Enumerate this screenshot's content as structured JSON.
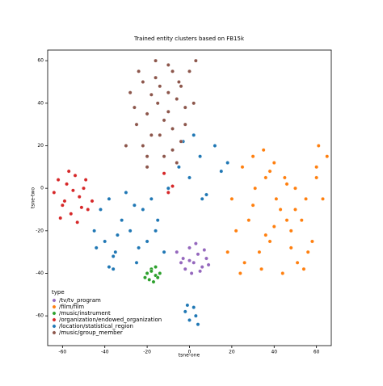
{
  "chart_data": {
    "type": "scatter",
    "title": "Trained entity clusters based on FB15k",
    "x_label": "tsne-one",
    "y_label": "tsne-two",
    "xlim": [
      -67,
      67
    ],
    "ylim": [
      -74,
      65
    ],
    "xticks": [
      -60,
      -40,
      -20,
      0,
      20,
      40,
      60
    ],
    "yticks": [
      -60,
      -40,
      -20,
      0,
      20,
      40,
      60
    ],
    "legend_title": "type",
    "legend_position": "lower left",
    "series": [
      {
        "name": "/tv/tv_program",
        "color": "#9467bd",
        "x": [
          -6,
          -3,
          0,
          2,
          4,
          6,
          8,
          -2,
          1,
          3,
          5,
          -4,
          7,
          9,
          0
        ],
        "y": [
          -30,
          -33,
          -28,
          -35,
          -31,
          -37,
          -33,
          -38,
          -40,
          -26,
          -39,
          -35,
          -29,
          -36,
          -34
        ]
      },
      {
        "name": "/film/film",
        "color": "#ff7f0e",
        "x": [
          20,
          25,
          30,
          35,
          40,
          45,
          50,
          55,
          60,
          65,
          22,
          28,
          33,
          38,
          43,
          48,
          53,
          58,
          63,
          18,
          26,
          31,
          36,
          41,
          46,
          51,
          56,
          61,
          24,
          34,
          44,
          54,
          30,
          40,
          50,
          60,
          38,
          48,
          36,
          46
        ],
        "y": [
          -5,
          10,
          15,
          18,
          12,
          5,
          0,
          -5,
          10,
          15,
          -20,
          -15,
          -30,
          -25,
          -10,
          -20,
          -15,
          -25,
          -5,
          -30,
          -35,
          0,
          5,
          -5,
          -15,
          -35,
          -30,
          20,
          -40,
          -38,
          -40,
          -38,
          -8,
          -18,
          -10,
          5,
          8,
          -28,
          -22,
          2
        ]
      },
      {
        "name": "/music/instrument",
        "color": "#2ca02c",
        "x": [
          -20,
          -18,
          -16,
          -14,
          -19,
          -17,
          -15,
          -18,
          -16,
          -21
        ],
        "y": [
          -40,
          -38,
          -41,
          -40,
          -43,
          -44,
          -42,
          -39,
          -37,
          -42
        ]
      },
      {
        "name": "/organization/endowed_organization",
        "color": "#d62728",
        "x": [
          -64,
          -62,
          -60,
          -58,
          -56,
          -54,
          -52,
          -50,
          -48,
          -46,
          -61,
          -57,
          -53,
          -49,
          -59,
          -55,
          -51,
          -8,
          -10,
          -12
        ],
        "y": [
          -2,
          4,
          -8,
          2,
          -12,
          6,
          -4,
          0,
          -10,
          -6,
          -14,
          8,
          -16,
          4,
          -6,
          -1,
          -9,
          1,
          -2,
          7
        ]
      },
      {
        "name": "/location/statistical_region",
        "color": "#1f77b4",
        "x": [
          -45,
          -42,
          -40,
          -38,
          -35,
          -32,
          -30,
          -28,
          -25,
          -22,
          -20,
          -18,
          -15,
          -12,
          -44,
          -36,
          -26,
          -16,
          -34,
          -24,
          -10,
          -5,
          0,
          5,
          8,
          12,
          15,
          18,
          -3,
          2,
          6,
          -8,
          -2,
          0,
          2,
          4,
          -1,
          3,
          -38,
          -36
        ],
        "y": [
          -20,
          -10,
          -25,
          -5,
          -30,
          -15,
          -2,
          -20,
          -35,
          -10,
          -25,
          -5,
          -15,
          -30,
          -28,
          -32,
          -8,
          -20,
          -22,
          -28,
          0,
          10,
          5,
          15,
          -3,
          20,
          8,
          12,
          22,
          25,
          -5,
          18,
          -58,
          -62,
          -56,
          -64,
          -55,
          -60,
          -37,
          -38
        ]
      },
      {
        "name": "/music/group_member",
        "color": "#8c564b",
        "x": [
          -25,
          -20,
          -15,
          -10,
          -5,
          0,
          -22,
          -18,
          -12,
          -8,
          -2,
          3,
          -28,
          -24,
          -16,
          -6,
          -14,
          -10,
          -4,
          -20,
          -26,
          -12,
          -8,
          -18,
          -6,
          -2,
          -14,
          -22,
          -10,
          -30,
          -16,
          -4,
          -20,
          2,
          -8
        ],
        "y": [
          30,
          35,
          40,
          45,
          50,
          55,
          20,
          25,
          15,
          28,
          38,
          60,
          45,
          55,
          52,
          42,
          48,
          58,
          22,
          10,
          38,
          32,
          18,
          44,
          12,
          30,
          25,
          50,
          36,
          20,
          60,
          48,
          15,
          40,
          55
        ]
      }
    ]
  }
}
